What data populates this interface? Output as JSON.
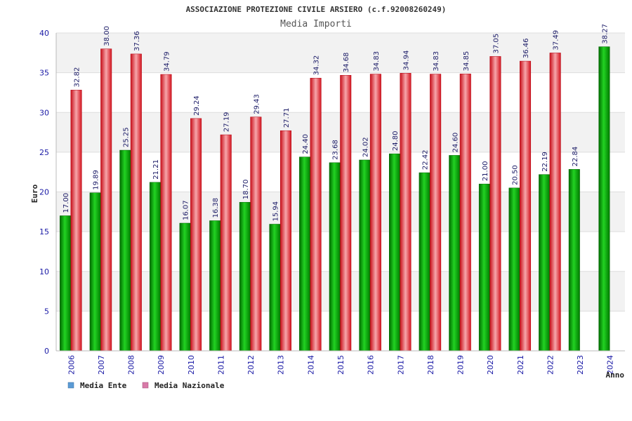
{
  "chart_data": {
    "type": "bar",
    "title": "ASSOCIAZIONE PROTEZIONE CIVILE ARSIERO (c.f.92008260249)",
    "subtitle": "Media Importi",
    "xlabel": "Anno",
    "ylabel": "Euro",
    "ylim": [
      0,
      40
    ],
    "yticks": [
      0,
      5,
      10,
      15,
      20,
      25,
      30,
      35,
      40
    ],
    "grid": true,
    "legend_position": "bottom-left",
    "categories": [
      "2006",
      "2007",
      "2008",
      "2009",
      "2010",
      "2011",
      "2012",
      "2013",
      "2014",
      "2015",
      "2016",
      "2017",
      "2018",
      "2019",
      "2020",
      "2021",
      "2022",
      "2023",
      "2024"
    ],
    "series": [
      {
        "name": "Media Ente",
        "color": "#00aa00",
        "legend_color": "#5b9bd5",
        "values": [
          17.0,
          19.89,
          25.25,
          21.21,
          16.07,
          16.38,
          18.7,
          15.94,
          24.4,
          23.68,
          24.02,
          24.8,
          22.42,
          24.6,
          21.0,
          20.5,
          22.19,
          22.84,
          38.27
        ],
        "labels": [
          "17.00",
          "19.89",
          "25.25",
          "21.21",
          "16.07",
          "16.38",
          "18.70",
          "15.94",
          "24.40",
          "23.68",
          "24.02",
          "24.80",
          "22.42",
          "24.60",
          "21.00",
          "20.50",
          "22.19",
          "22.84",
          "38.27"
        ]
      },
      {
        "name": "Media Nazionale",
        "color": "#e8202a",
        "legend_color": "#d87aa8",
        "values": [
          32.82,
          38.0,
          37.36,
          34.79,
          29.24,
          27.19,
          29.43,
          27.71,
          34.32,
          34.68,
          34.83,
          34.94,
          34.83,
          34.85,
          37.05,
          36.46,
          37.49,
          null,
          null
        ],
        "labels": [
          "32.82",
          "38.00",
          "37.36",
          "34.79",
          "29.24",
          "27.19",
          "29.43",
          "27.71",
          "34.32",
          "34.68",
          "34.83",
          "34.94",
          "34.83",
          "34.85",
          "37.05",
          "36.46",
          "37.49",
          null,
          null
        ]
      }
    ]
  }
}
